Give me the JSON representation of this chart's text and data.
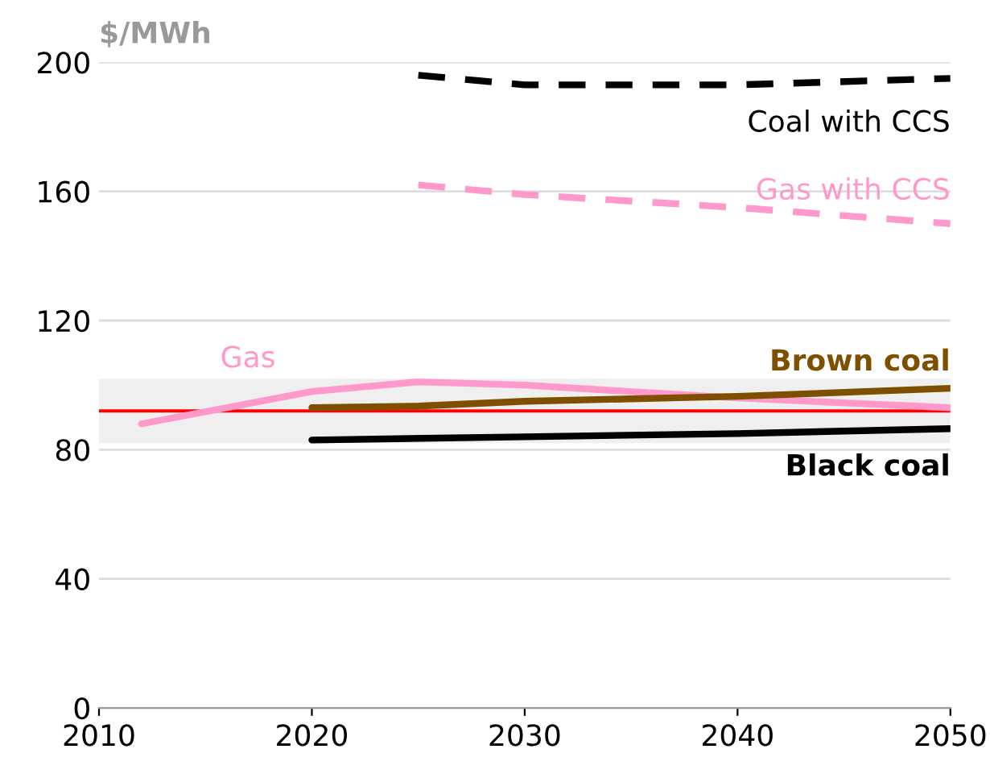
{
  "chart_data": {
    "type": "line",
    "ylabel": "$/MWh",
    "xlim": [
      2010,
      2050
    ],
    "xticks": [
      2010,
      2020,
      2030,
      2040,
      2050
    ],
    "ylim": [
      0,
      200
    ],
    "yticks": [
      0,
      40,
      80,
      120,
      160,
      200
    ],
    "grid": "y",
    "legend": false,
    "series": [
      {
        "name": "Coal with CCS",
        "color": "#000000",
        "line_style": "dashed",
        "x": [
          2025,
          2030,
          2035,
          2040,
          2050
        ],
        "values": [
          196,
          193,
          193,
          193,
          195
        ]
      },
      {
        "name": "Gas with CCS",
        "color": "#ff99cc",
        "line_style": "dashed",
        "x": [
          2025,
          2030,
          2040,
          2050
        ],
        "values": [
          162,
          159,
          155,
          150
        ]
      },
      {
        "name": "Gas",
        "color": "#ff99cc",
        "x": [
          2012,
          2020,
          2025,
          2030,
          2040,
          2050
        ],
        "values": [
          88,
          98,
          101,
          100,
          96,
          93
        ]
      },
      {
        "name": "Brown coal",
        "color": "#7f4f00",
        "x": [
          2020,
          2025,
          2030,
          2040,
          2050
        ],
        "values": [
          93,
          93.5,
          95,
          96.5,
          99
        ]
      },
      {
        "name": "Black coal",
        "color": "#000000",
        "x": [
          2020,
          2030,
          2040,
          2050
        ],
        "values": [
          83,
          84,
          85,
          86.5
        ]
      }
    ],
    "bands": [
      {
        "axis": "y",
        "from": 82,
        "to": 102,
        "color": "#efefef"
      }
    ],
    "ref_lines": [
      {
        "axis": "y",
        "value": 92,
        "color": "#ff0000"
      }
    ]
  }
}
